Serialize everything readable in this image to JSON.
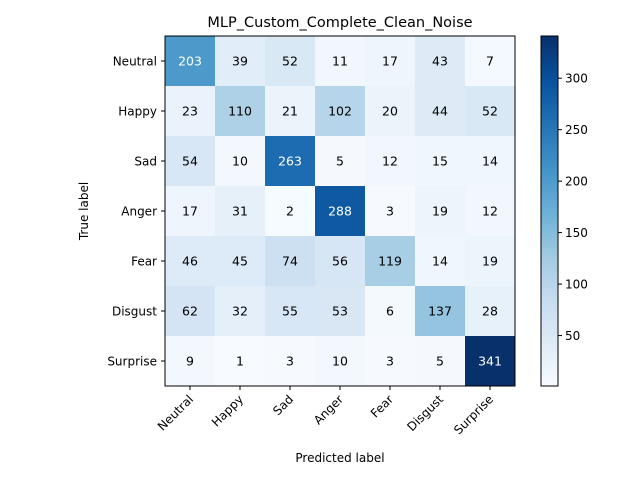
{
  "chart_data": {
    "type": "heatmap",
    "title": "MLP_Custom_Complete_Clean_Noise",
    "xlabel": "Predicted label",
    "ylabel": "True label",
    "x_categories": [
      "Neutral",
      "Happy",
      "Sad",
      "Anger",
      "Fear",
      "Disgust",
      "Surprise"
    ],
    "y_categories": [
      "Neutral",
      "Happy",
      "Sad",
      "Anger",
      "Fear",
      "Disgust",
      "Surprise"
    ],
    "values": [
      [
        203,
        39,
        52,
        11,
        17,
        43,
        7
      ],
      [
        23,
        110,
        21,
        102,
        20,
        44,
        52
      ],
      [
        54,
        10,
        263,
        5,
        12,
        15,
        14
      ],
      [
        17,
        31,
        2,
        288,
        3,
        19,
        12
      ],
      [
        46,
        45,
        74,
        56,
        119,
        14,
        19
      ],
      [
        62,
        32,
        55,
        53,
        6,
        137,
        28
      ],
      [
        9,
        1,
        3,
        10,
        3,
        5,
        341
      ]
    ],
    "colormap": "Blues",
    "colorbar": {
      "min": 1,
      "max": 341,
      "ticks": [
        50,
        100,
        150,
        200,
        250,
        300
      ]
    }
  }
}
